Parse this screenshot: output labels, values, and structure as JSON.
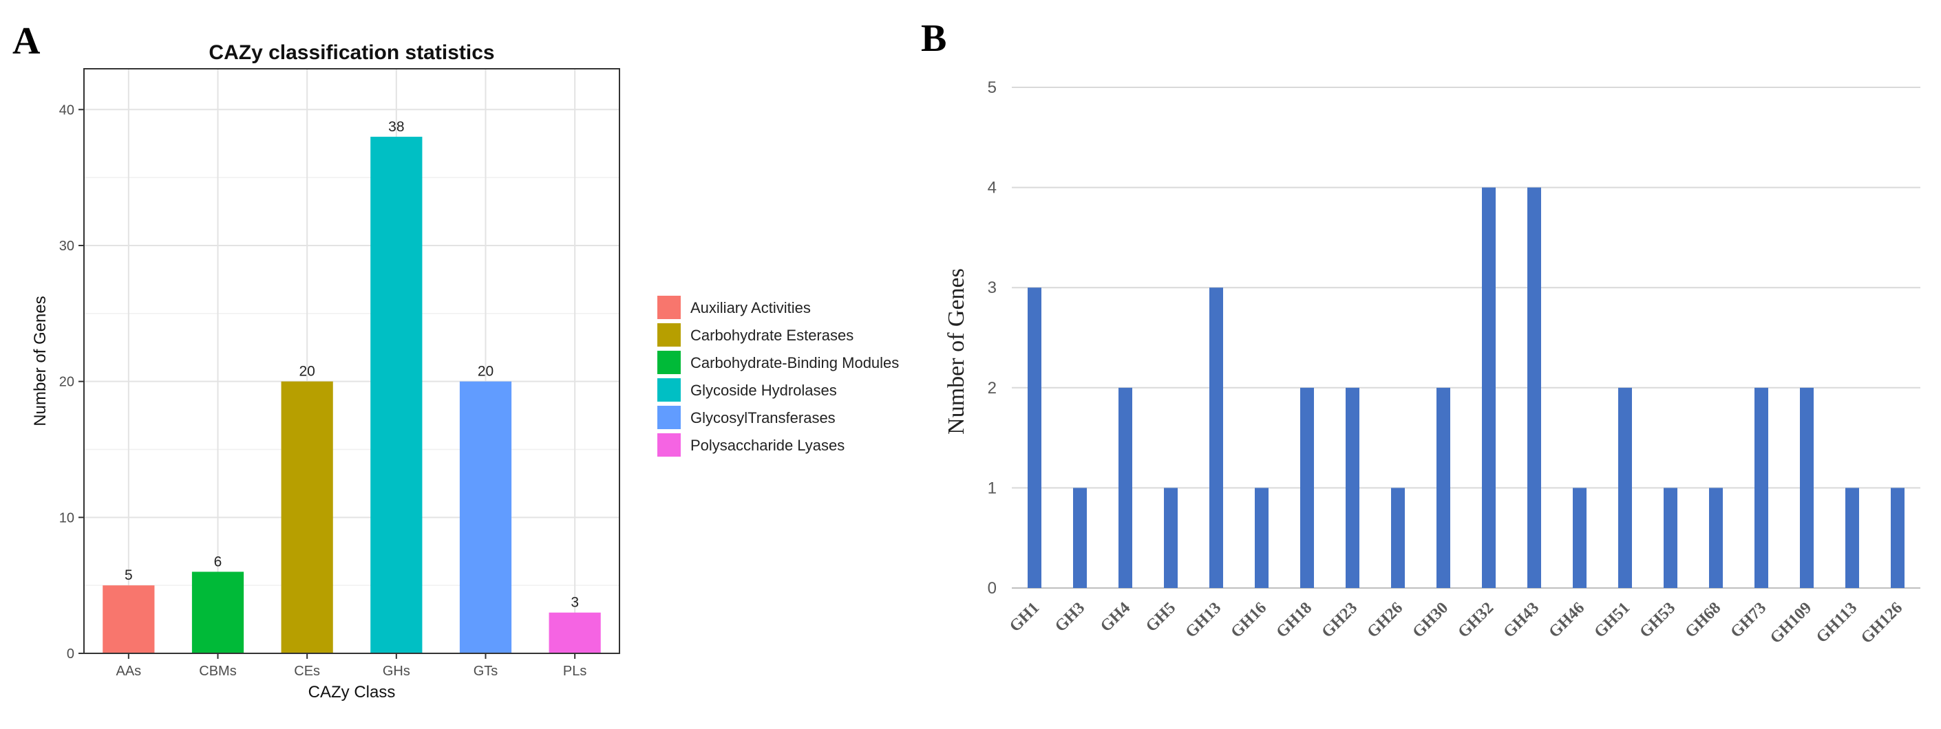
{
  "panels": {
    "a_label": "A",
    "b_label": "B"
  },
  "chart_data": [
    {
      "type": "bar",
      "title": "CAZy classification statistics",
      "xlabel": "CAZy Class",
      "ylabel": "Number of Genes",
      "categories": [
        "AAs",
        "CBMs",
        "CEs",
        "GHs",
        "GTs",
        "PLs"
      ],
      "values": [
        5,
        6,
        20,
        38,
        20,
        3
      ],
      "data_labels": [
        "5",
        "6",
        "20",
        "38",
        "20",
        "3"
      ],
      "colors": [
        "#F8766D",
        "#B79F00",
        "#00BA38",
        "#00BFC4",
        "#619CFF",
        "#F564E3"
      ],
      "bar_colors": [
        "#F8766D",
        "#00BA38",
        "#B79F00",
        "#00BFC4",
        "#619CFF",
        "#F564E3"
      ],
      "yticks": [
        0,
        10,
        20,
        30,
        40
      ],
      "ylim": [
        0,
        43
      ],
      "grid": true,
      "legend": {
        "placement": "right",
        "entries": [
          "Auxiliary Activities",
          "Carbohydrate Esterases",
          "Carbohydrate-Binding Modules",
          "Glycoside Hydrolases",
          "GlycosylTransferases",
          "Polysaccharide Lyases"
        ]
      }
    },
    {
      "type": "bar",
      "title": "",
      "xlabel": "",
      "ylabel": "Number of Genes",
      "categories": [
        "GH1",
        "GH3",
        "GH4",
        "GH5",
        "GH13",
        "GH16",
        "GH18",
        "GH23",
        "GH26",
        "GH30",
        "GH32",
        "GH43",
        "GH46",
        "GH51",
        "GH53",
        "GH68",
        "GH73",
        "GH109",
        "GH113",
        "GH126"
      ],
      "values": [
        3,
        1,
        2,
        1,
        3,
        1,
        2,
        2,
        1,
        2,
        4,
        4,
        1,
        2,
        1,
        1,
        2,
        2,
        1,
        1
      ],
      "color": "#4472C4",
      "yticks": [
        0,
        1,
        2,
        3,
        4,
        5
      ],
      "ylim": [
        0,
        5
      ],
      "grid": true
    }
  ]
}
